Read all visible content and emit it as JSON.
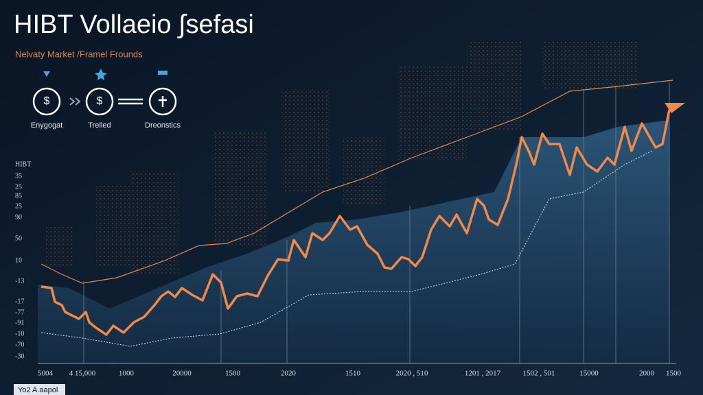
{
  "chart_data": {
    "type": "line",
    "title": "HIBT Vollaeio ∫sefasi",
    "subtitle": "Nelvaty Market /Framel Frounds",
    "steps": [
      "Enygogat",
      "Trelled",
      "Dreonstics"
    ],
    "y_labels": [
      "HIBT",
      "35",
      "25",
      "85",
      "25",
      "90",
      "50",
      "10",
      "-13",
      "-17",
      "-77",
      "-91",
      "-10",
      "-70",
      "-30"
    ],
    "x_labels": [
      "5004",
      "4 15,000",
      "1000",
      "20000",
      "1500",
      "2020",
      "1510",
      "2020 , 510",
      "1201 , 2017",
      "1502 , 501",
      "15000",
      "2000",
      "1500"
    ],
    "footer": "Yo2 A.aapol"
  }
}
